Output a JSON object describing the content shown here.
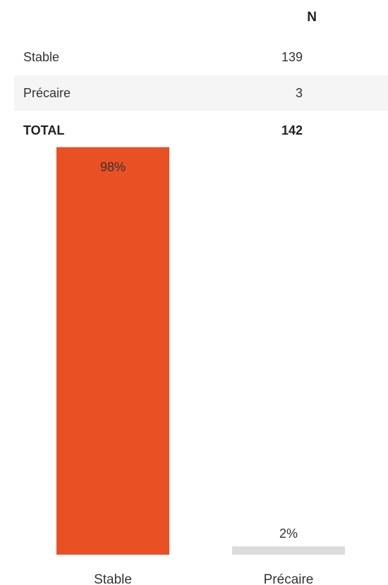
{
  "table": {
    "column_header": "N",
    "rows": [
      {
        "label": "Stable",
        "value": "139"
      },
      {
        "label": "Précaire",
        "value": "3"
      }
    ],
    "total": {
      "label": "TOTAL",
      "value": "142"
    }
  },
  "chart_data": {
    "type": "bar",
    "categories": [
      "Stable",
      "Précaire"
    ],
    "values": [
      98,
      2
    ],
    "data_labels": [
      "98%",
      "2%"
    ],
    "ylim": [
      0,
      100
    ],
    "colors": [
      "#e95125",
      "#dcdcdc"
    ]
  }
}
